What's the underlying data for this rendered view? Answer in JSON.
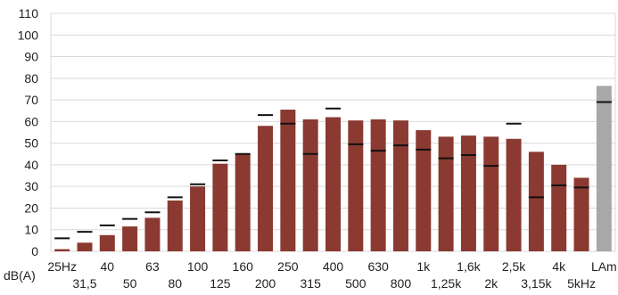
{
  "chart_data": {
    "type": "bar",
    "ylabel": "dB(A)",
    "ylim": [
      0,
      110
    ],
    "yticks": [
      "0",
      "10",
      "20",
      "30",
      "40",
      "50",
      "60",
      "70",
      "80",
      "90",
      "100",
      "110"
    ],
    "grid": "horizontal",
    "categories": [
      "25Hz",
      "31,5",
      "40",
      "50",
      "63",
      "80",
      "100",
      "125",
      "160",
      "200",
      "250",
      "315",
      "400",
      "500",
      "630",
      "800",
      "1k",
      "1,25k",
      "1,6k",
      "2k",
      "2,5k",
      "3,15k",
      "4k",
      "5kHz",
      "LAm"
    ],
    "series": [
      {
        "values": [
          1,
          4,
          7.5,
          11.5,
          15.5,
          23.5,
          30,
          40.5,
          45,
          58,
          65.5,
          61,
          62,
          60.5,
          61,
          60.5,
          56,
          53,
          53.5,
          53,
          52,
          46,
          40,
          34,
          76.5
        ]
      },
      {
        "values": [
          6,
          9,
          12,
          15,
          18,
          25,
          31,
          42,
          45,
          63,
          59,
          45,
          66,
          49.5,
          46.5,
          49,
          47,
          43,
          44.5,
          39.5,
          59,
          25,
          30.5,
          29.5,
          69
        ]
      }
    ],
    "colors": {
      "bar": "#8b3a31",
      "total_bar": "#a8a8a8",
      "marker": "#111111",
      "grid": "#d9d9d9"
    }
  }
}
